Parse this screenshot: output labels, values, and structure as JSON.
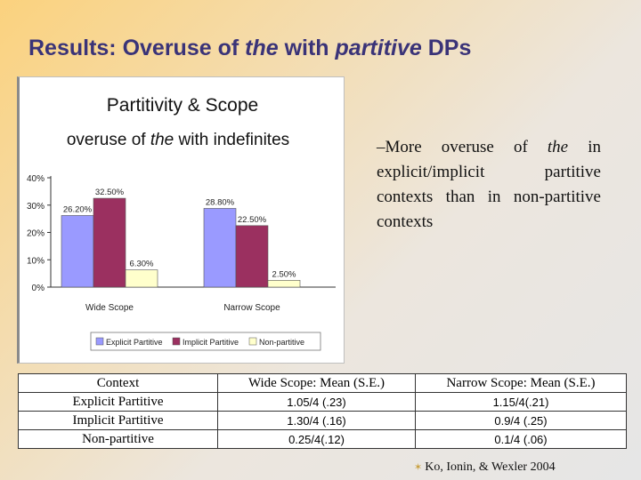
{
  "slide": {
    "title_prefix": "Results: Overuse of ",
    "title_the": "the",
    "title_mid": " with ",
    "title_partitive": "partitive",
    "title_suffix": " DPs"
  },
  "bullet": {
    "prefix": "–More overuse of ",
    "emph": "the",
    "suffix": " in explicit/implicit partitive contexts than in non-partitive contexts"
  },
  "chart_data": {
    "type": "bar",
    "title_line1": "Partitivity & Scope",
    "title_line2_pre": "overuse of ",
    "title_line2_em": "the",
    "title_line2_post": " with indefinites",
    "categories": [
      "Wide Scope",
      "Narrow Scope"
    ],
    "series": [
      {
        "name": "Explicit Partitive",
        "color": "#9a9aff",
        "values": [
          26.2,
          28.8
        ],
        "labels": [
          "26.20%",
          "28.80%"
        ]
      },
      {
        "name": "Implicit Partitive",
        "color": "#9b3060",
        "values": [
          32.5,
          22.5
        ],
        "labels": [
          "32.50%",
          "22.50%"
        ]
      },
      {
        "name": "Non-partitive",
        "color": "#ffffcc",
        "values": [
          6.3,
          2.5
        ],
        "labels": [
          "6.30%",
          "2.50%"
        ]
      }
    ],
    "yticks": [
      "0%",
      "10%",
      "20%",
      "30%",
      "40%"
    ],
    "ylim": [
      0,
      40
    ],
    "grid": false,
    "legend": "bottom"
  },
  "table": {
    "headers": [
      "Context",
      "Wide Scope: Mean (S.E.)",
      "Narrow Scope: Mean (S.E.)"
    ],
    "rows": [
      [
        "Explicit Partitive",
        "1.05/4 (.23)",
        "1.15/4(.21)"
      ],
      [
        "Implicit Partitive",
        "1.30/4 (.16)",
        "0.9/4 (.25)"
      ],
      [
        "Non-partitive",
        "0.25/4(.12)",
        "0.1/4 (.06)"
      ]
    ]
  },
  "citation": "Ko, Ionin, & Wexler 2004",
  "colors": {
    "title": "#3a3378",
    "star": "#c8a040"
  }
}
